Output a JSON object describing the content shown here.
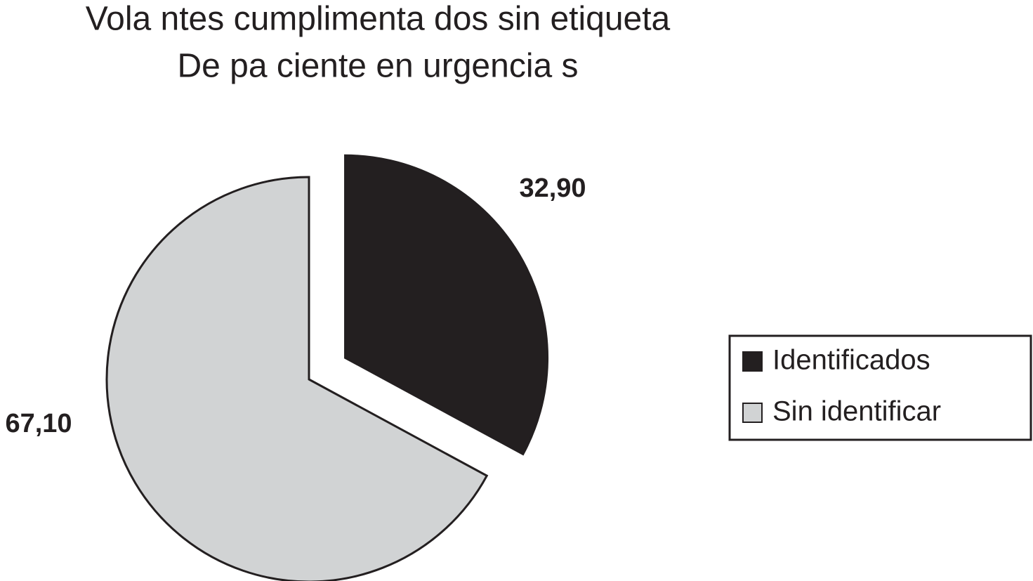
{
  "chart_data": {
    "type": "pie",
    "title": [
      "Vola ntes cumplimenta dos sin etiqueta",
      "De pa ciente en  urgencia s"
    ],
    "categories": [
      "Identificados",
      "Sin identificar"
    ],
    "values": [
      32.9,
      67.1
    ],
    "value_labels": [
      "32,90",
      "67,10"
    ],
    "colors": [
      "#231f20",
      "#d1d3d4"
    ]
  }
}
